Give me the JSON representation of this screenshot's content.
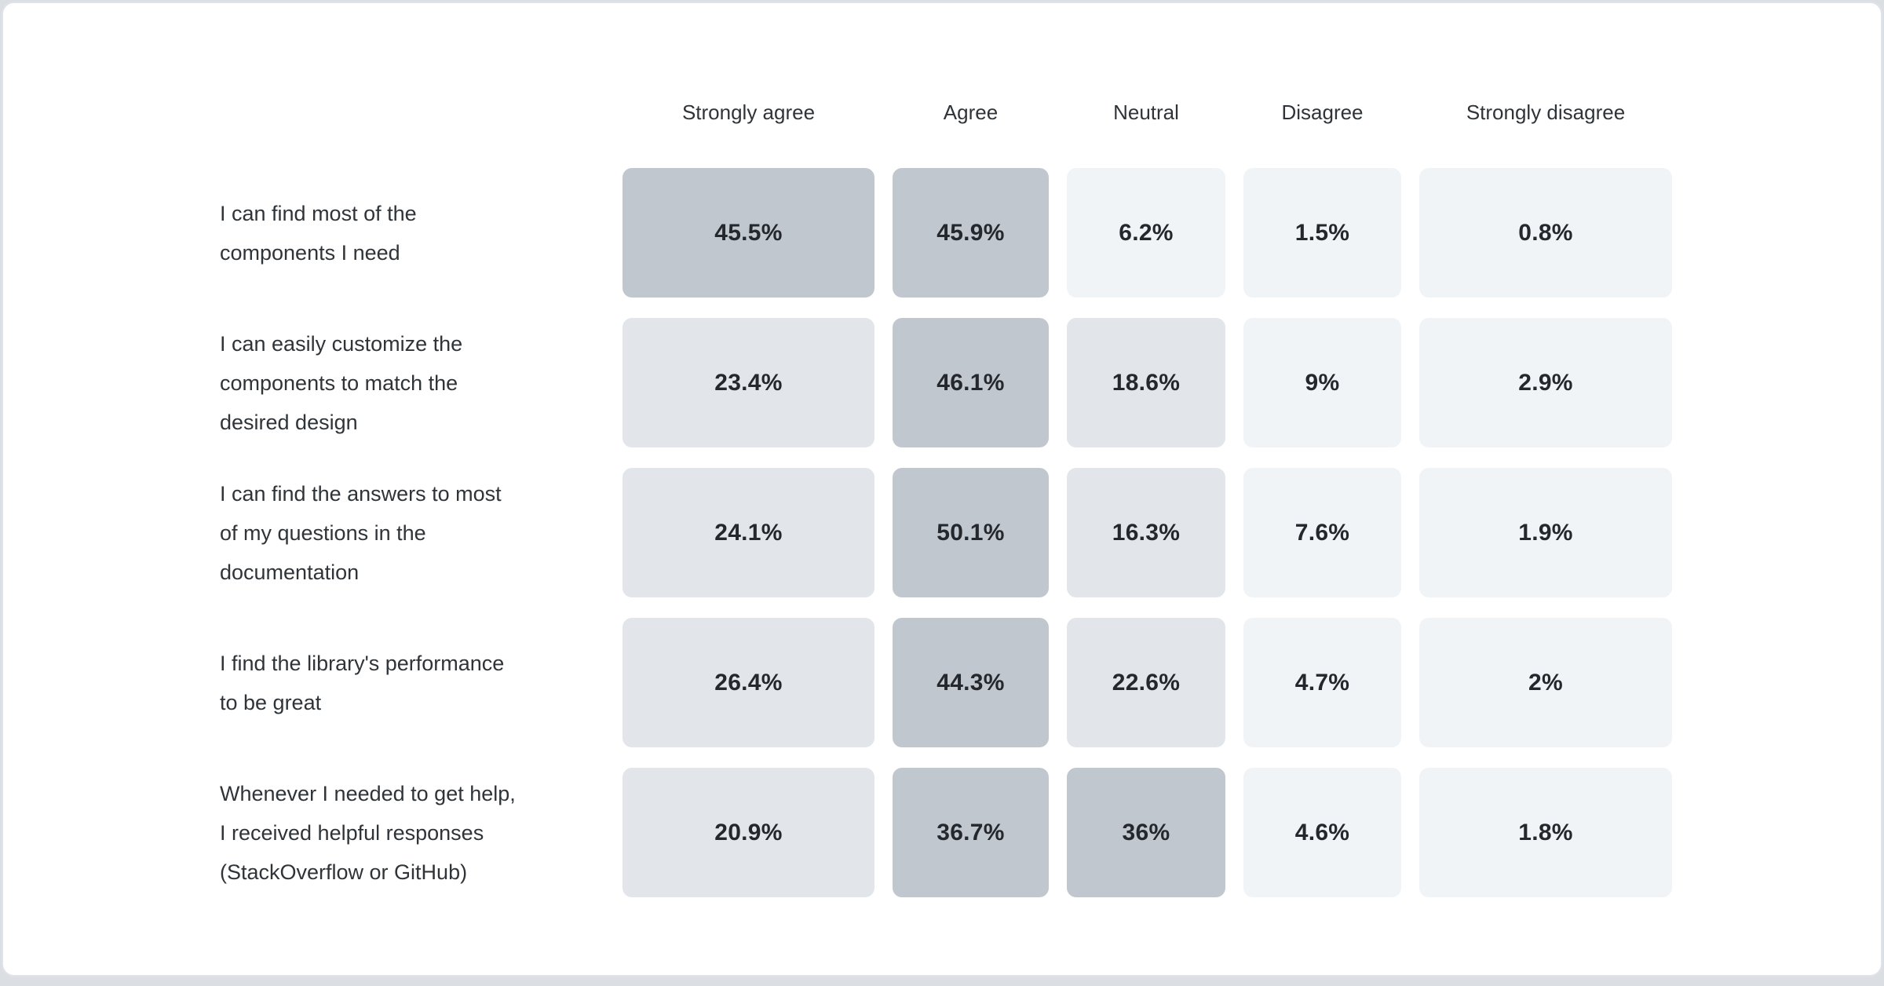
{
  "page": {
    "background": "#dbdfe3",
    "card_background": "#ffffff",
    "card_border": "#e0e4e8"
  },
  "text_colors": {
    "header": "#2f3439",
    "label": "#2f3439",
    "value": "#24282d"
  },
  "chart_data": {
    "type": "heatmap",
    "title": "",
    "unit": "%",
    "legend_position": "none",
    "grid": false,
    "columns": [
      "Strongly agree",
      "Agree",
      "Neutral",
      "Disagree",
      "Strongly disagree"
    ],
    "rows": [
      {
        "label": "I can find most of the\ncomponents I need",
        "values": [
          45.5,
          45.9,
          6.2,
          1.5,
          0.8
        ],
        "display": [
          "45.5%",
          "45.9%",
          "6.2%",
          "1.5%",
          "0.8%"
        ]
      },
      {
        "label": "I can easily customize the\ncomponents to match the\ndesired design",
        "values": [
          23.4,
          46.1,
          18.6,
          9,
          2.9
        ],
        "display": [
          "23.4%",
          "46.1%",
          "18.6%",
          "9%",
          "2.9%"
        ]
      },
      {
        "label": "I can find the answers to most\nof my questions in the\ndocumentation",
        "values": [
          24.1,
          50.1,
          16.3,
          7.6,
          1.9
        ],
        "display": [
          "24.1%",
          "50.1%",
          "16.3%",
          "7.6%",
          "1.9%"
        ]
      },
      {
        "label": "I find the library's performance\nto be great",
        "values": [
          26.4,
          44.3,
          22.6,
          4.7,
          2
        ],
        "display": [
          "26.4%",
          "44.3%",
          "22.6%",
          "4.7%",
          "2%"
        ]
      },
      {
        "label": "Whenever I needed to get help,\nI received helpful responses\n(StackOverflow or GitHub)",
        "values": [
          20.9,
          36.7,
          36,
          4.6,
          1.8
        ],
        "display": [
          "20.9%",
          "36.7%",
          "36%",
          "4.6%",
          "1.8%"
        ]
      }
    ],
    "scale": {
      "thresholds": {
        "high_min": 30,
        "mid_min": 10
      },
      "colors": {
        "high": "#c1c7ce",
        "mid": "#e2e6ea",
        "low": "#f1f4f6"
      }
    }
  }
}
